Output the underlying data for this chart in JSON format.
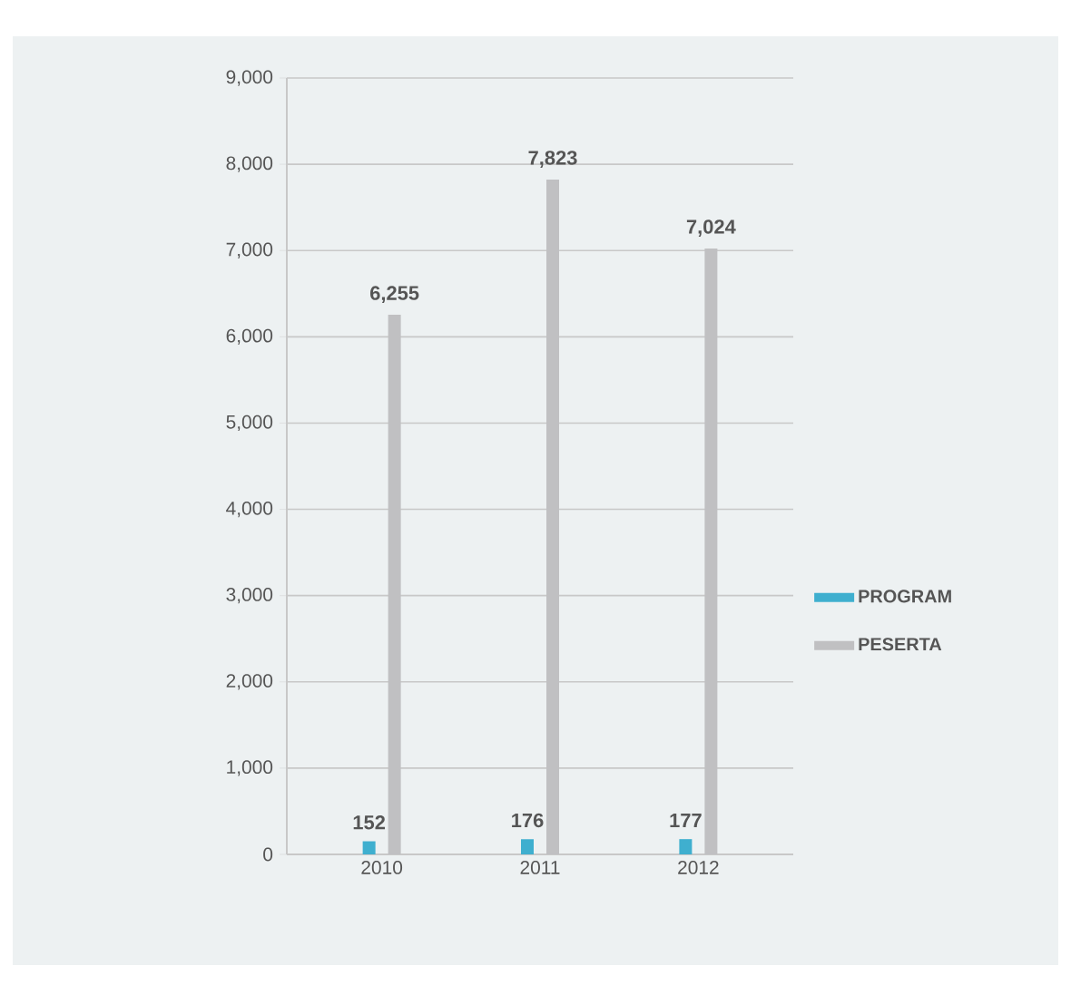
{
  "chart_data": {
    "type": "bar",
    "categories": [
      "2010",
      "2011",
      "2012"
    ],
    "series": [
      {
        "name": "PROGRAM",
        "color": "#3fafcf",
        "values": [
          152,
          176,
          177
        ],
        "value_labels": [
          "152",
          "176",
          "177"
        ]
      },
      {
        "name": "PESERTA",
        "color": "#c0c0c2",
        "values": [
          6255,
          7823,
          7024
        ],
        "value_labels": [
          "6,255",
          "7,823",
          "7,024"
        ]
      }
    ],
    "ylim": [
      0,
      9000
    ],
    "yticks": [
      {
        "value": 0,
        "label": "0"
      },
      {
        "value": 1000,
        "label": "1,000"
      },
      {
        "value": 2000,
        "label": "2,000"
      },
      {
        "value": 3000,
        "label": "3,000"
      },
      {
        "value": 4000,
        "label": "4,000"
      },
      {
        "value": 5000,
        "label": "5,000"
      },
      {
        "value": 6000,
        "label": "6,000"
      },
      {
        "value": 7000,
        "label": "7,000"
      },
      {
        "value": 8000,
        "label": "8,000"
      },
      {
        "value": 9000,
        "label": "9,000"
      }
    ],
    "grid": "y",
    "legend": "right"
  }
}
